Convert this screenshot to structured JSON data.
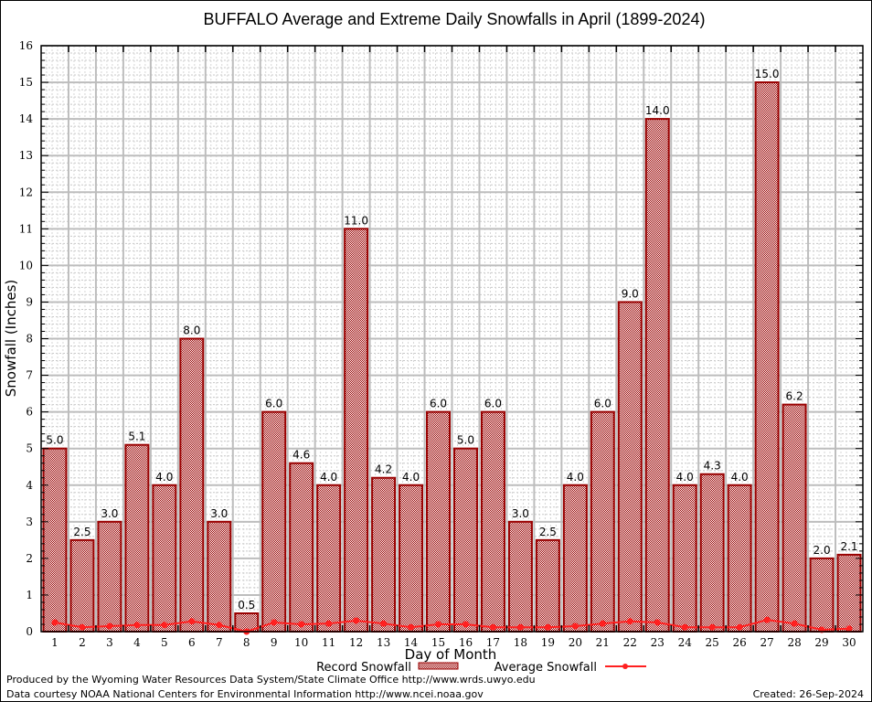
{
  "chart_data": {
    "type": "bar",
    "title": "BUFFALO Average and Extreme Daily Snowfalls in April (1899-2024)",
    "xlabel": "Day of Month",
    "ylabel": "Snowfall (Inches)",
    "ylim": [
      0,
      16
    ],
    "yticks": [
      0,
      1,
      2,
      3,
      4,
      5,
      6,
      7,
      8,
      9,
      10,
      11,
      12,
      13,
      14,
      15,
      16
    ],
    "grid": true,
    "legend_position": "bottom-center",
    "categories": [
      "1",
      "2",
      "3",
      "4",
      "5",
      "6",
      "7",
      "8",
      "9",
      "10",
      "11",
      "12",
      "13",
      "14",
      "15",
      "16",
      "17",
      "18",
      "19",
      "20",
      "21",
      "22",
      "23",
      "24",
      "25",
      "26",
      "27",
      "28",
      "29",
      "30"
    ],
    "series": [
      {
        "name": "Record Snowfall",
        "kind": "bar",
        "color": "#990000",
        "values": [
          5.0,
          2.5,
          3.0,
          5.1,
          4.0,
          8.0,
          3.0,
          0.5,
          6.0,
          4.6,
          4.0,
          11.0,
          4.2,
          4.0,
          6.0,
          5.0,
          6.0,
          3.0,
          2.5,
          4.0,
          6.0,
          9.0,
          14.0,
          4.0,
          4.3,
          4.0,
          15.0,
          6.2,
          2.0,
          2.1
        ],
        "labels": [
          "5.0",
          "2.5",
          "3.0",
          "5.1",
          "4.0",
          "8.0",
          "3.0",
          "0.5",
          "6.0",
          "4.6",
          "4.0",
          "11.0",
          "4.2",
          "4.0",
          "6.0",
          "5.0",
          "6.0",
          "3.0",
          "2.5",
          "4.0",
          "6.0",
          "9.0",
          "14.0",
          "4.0",
          "4.3",
          "4.0",
          "15.0",
          "6.2",
          "2.0",
          "2.1"
        ]
      },
      {
        "name": "Average Snowfall",
        "kind": "line",
        "color": "#ff2020",
        "values": [
          0.25,
          0.12,
          0.15,
          0.18,
          0.18,
          0.28,
          0.18,
          0.0,
          0.25,
          0.2,
          0.22,
          0.3,
          0.22,
          0.12,
          0.2,
          0.2,
          0.12,
          0.12,
          0.12,
          0.15,
          0.22,
          0.28,
          0.25,
          0.12,
          0.12,
          0.12,
          0.32,
          0.22,
          0.05,
          0.08
        ]
      }
    ]
  },
  "footer": {
    "credit_line_1": "Produced by the Wyoming Water Resources Data System/State Climate Office http://www.wrds.uwyo.edu",
    "credit_line_2": "Data courtesy NOAA National Centers for Environmental Information http://www.ncei.noaa.gov",
    "created": "Created: 26-Sep-2024"
  }
}
